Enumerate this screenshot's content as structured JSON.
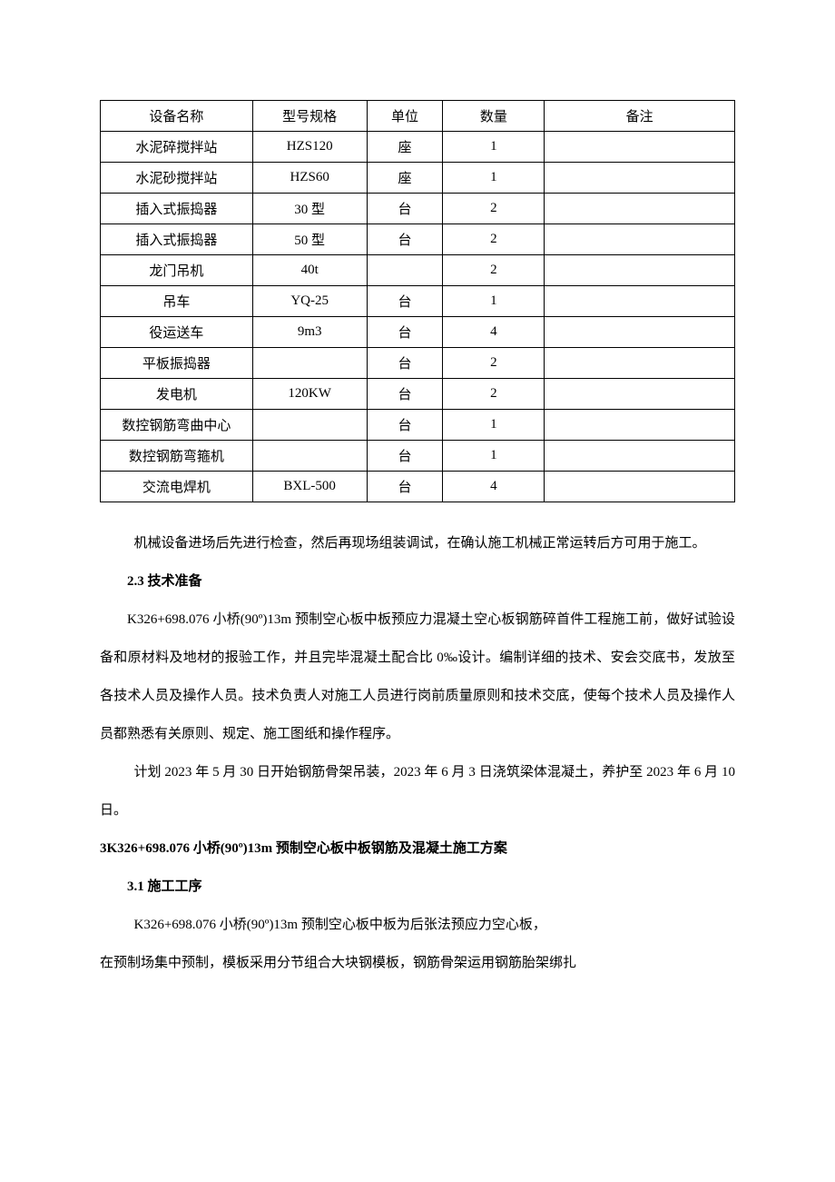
{
  "table": {
    "columns": [
      "设备名称",
      "型号规格",
      "单位",
      "数量",
      "备注"
    ],
    "col_widths": [
      "24%",
      "18%",
      "12%",
      "16%",
      "30%"
    ],
    "rows": [
      [
        "水泥碎搅拌站",
        "HZS120",
        "座",
        "1",
        ""
      ],
      [
        "水泥砂搅拌站",
        "HZS60",
        "座",
        "1",
        ""
      ],
      [
        "插入式振捣器",
        "30 型",
        "台",
        "2",
        ""
      ],
      [
        "插入式振捣器",
        "50 型",
        "台",
        "2",
        ""
      ],
      [
        "龙门吊机",
        "40t",
        "",
        "2",
        ""
      ],
      [
        "吊车",
        "YQ-25",
        "台",
        "1",
        ""
      ],
      [
        "役运送车",
        "9m3",
        "台",
        "4",
        ""
      ],
      [
        "平板振捣器",
        "",
        "台",
        "2",
        ""
      ],
      [
        "发电机",
        "120KW",
        "台",
        "2",
        ""
      ],
      [
        "数控钢筋弯曲中心",
        "",
        "台",
        "1",
        ""
      ],
      [
        "数控钢筋弯箍机",
        "",
        "台",
        "1",
        ""
      ],
      [
        "交流电焊机",
        "BXL-500",
        "台",
        "4",
        ""
      ]
    ]
  },
  "para_after_table": "机械设备进场后先进行检查，然后再现场组装调试，在确认施工机械正常运转后方可用于施工。",
  "sec23_title": "2.3  技术准备",
  "sec23_p1": "K326+698.076 小桥(90º)13m 预制空心板中板预应力混凝土空心板钢筋碎首件工程施工前，做好试验设备和原材料及地材的报验工作，并且完毕混凝土配合比 0‰设计。编制详细的技术、安会交底书，发放至各技术人员及操作人员。技术负责人对施工人员进行岗前质量原则和技术交底，使每个技术人员及操作人员都熟悉有关原则、规定、施工图纸和操作程序。",
  "sec23_p2": "计划 2023 年 5 月 30 日开始钢筋骨架吊装，2023 年 6 月 3 日浇筑梁体混凝土，养护至 2023 年 6 月 10 日。",
  "sec3_title": "3K326+698.076 小桥(90º)13m 预制空心板中板钢筋及混凝土施工方案",
  "sec31_title": "3.1 施工工序",
  "sec31_p1": "K326+698.076 小桥(90º)13m 预制空心板中板为后张法预应力空心板，",
  "sec31_p2": "在预制场集中预制，模板采用分节组合大块钢模板，钢筋骨架运用钢筋胎架绑扎"
}
